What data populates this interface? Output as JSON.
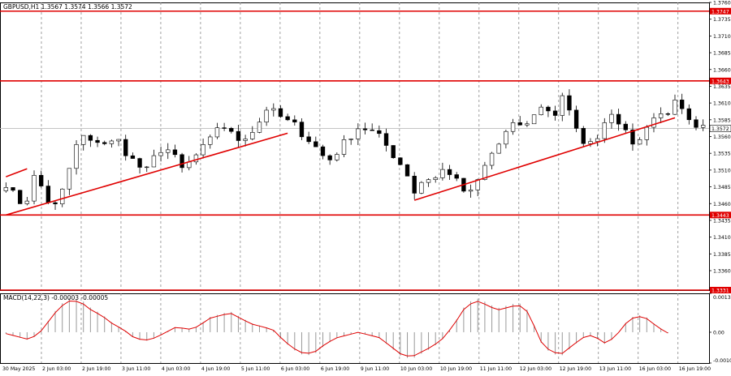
{
  "chart_data": [
    {
      "type": "candlestick",
      "title": "GBPUSD,H1  1.3567 1.3574 1.3566 1.3572",
      "symbol": "GBPUSD",
      "timeframe": "H1",
      "ohlc_last": {
        "open": 1.3567,
        "high": 1.3574,
        "low": 1.3566,
        "close": 1.3572
      },
      "current_price_label": "1.3572",
      "ylim": [
        1.3331,
        1.376
      ],
      "y_ticks": [
        "1.3760",
        "1.3735",
        "1.3710",
        "1.3685",
        "1.3660",
        "1.3635",
        "1.3610",
        "1.3585",
        "1.3560",
        "1.3535",
        "1.3510",
        "1.3485",
        "1.3460",
        "1.3435",
        "1.3410",
        "1.3385",
        "1.3360"
      ],
      "x_ticks": [
        "30 May 2025",
        "2 Jun 03:00",
        "2 Jun 19:00",
        "3 Jun 11:00",
        "4 Jun 03:00",
        "4 Jun 19:00",
        "5 Jun 11:00",
        "6 Jun 03:00",
        "6 Jun 19:00",
        "9 Jun 11:00",
        "10 Jun 03:00",
        "10 Jun 19:00",
        "11 Jun 11:00",
        "12 Jun 03:00",
        "12 Jun 19:00",
        "13 Jun 11:00",
        "16 Jun 03:00",
        "16 Jun 19:00"
      ],
      "horizontal_levels": [
        {
          "value": 1.3747,
          "label": "1.3747",
          "color": "#e00000"
        },
        {
          "value": 1.3643,
          "label": "1.3643",
          "color": "#e00000"
        },
        {
          "value": 1.3443,
          "label": "1.3443",
          "color": "#e00000"
        },
        {
          "value": 1.3331,
          "label": "1.3331",
          "color": "#e00000"
        }
      ],
      "price_path": [
        1.349,
        1.347,
        1.3455,
        1.35,
        1.3482,
        1.3448,
        1.3476,
        1.352,
        1.3565,
        1.355,
        1.3555,
        1.3548,
        1.3556,
        1.3534,
        1.352,
        1.3506,
        1.353,
        1.3546,
        1.3532,
        1.351,
        1.3525,
        1.354,
        1.3555,
        1.3582,
        1.3566,
        1.3556,
        1.3562,
        1.3575,
        1.3602,
        1.3595,
        1.3584,
        1.3578,
        1.3562,
        1.355,
        1.3532,
        1.3525,
        1.3545,
        1.356,
        1.3575,
        1.357,
        1.3562,
        1.3545,
        1.3526,
        1.351,
        1.3475,
        1.35,
        1.3495,
        1.351,
        1.3505,
        1.348,
        1.3476,
        1.35,
        1.353,
        1.3548,
        1.357,
        1.358,
        1.3575,
        1.36,
        1.3605,
        1.359,
        1.3628,
        1.3575,
        1.3555,
        1.3548,
        1.357,
        1.36,
        1.3582,
        1.3555,
        1.3548,
        1.358,
        1.3592,
        1.3594,
        1.361,
        1.3592,
        1.3568,
        1.3572
      ],
      "trendlines": [
        {
          "from_index": 0,
          "from_value": 1.35,
          "to_index": 3,
          "to_value": 1.3512
        },
        {
          "from_index": 0,
          "from_value": 1.3443,
          "to_index": 40,
          "to_value": 1.3565
        },
        {
          "from_index": 58,
          "from_value": 1.3465,
          "to_index": 95,
          "to_value": 1.3588
        }
      ],
      "indicator": {
        "title": "MACD(14,22,3) -0.00003 -0.00005",
        "ylim": [
          -0.00103,
          0.0013
        ],
        "y_ticks": [
          "0.0013",
          "0.00",
          "-0.00103"
        ],
        "values": [
          -5e-05,
          -0.00015,
          -0.00025,
          -0.0001,
          0.0004,
          0.0009,
          0.00115,
          0.0011,
          0.0008,
          0.0006,
          0.0003,
          0.0001,
          -0.0002,
          -0.0003,
          -0.0002,
          0.0,
          0.0002,
          0.0001,
          0.0002,
          0.0005,
          0.0006,
          0.0007,
          0.0005,
          0.0003,
          0.0002,
          0.0001,
          -0.0003,
          -0.0006,
          -0.0008,
          -0.0007,
          -0.0004,
          -0.0002,
          -0.0001,
          0.0,
          -0.0001,
          -0.0002,
          -0.0005,
          -0.0008,
          -0.0009,
          -0.0007,
          -0.0005,
          -0.0002,
          0.0003,
          0.0009,
          0.00115,
          0.001,
          0.0008,
          0.0009,
          0.001,
          0.0007,
          -0.0003,
          -0.0007,
          -0.0008,
          -0.0005,
          -0.0002,
          -0.0001,
          -0.0004,
          -0.0002,
          0.0003,
          0.0006,
          0.0005,
          0.0002,
          -3e-05
        ]
      },
      "colors": {
        "candle": "#000000",
        "levels": "#e00000",
        "grid": "#888888",
        "signal": "#e00000",
        "histogram": "#999999",
        "price_box": "#e00000",
        "current_box": "#ffffff"
      }
    }
  ]
}
